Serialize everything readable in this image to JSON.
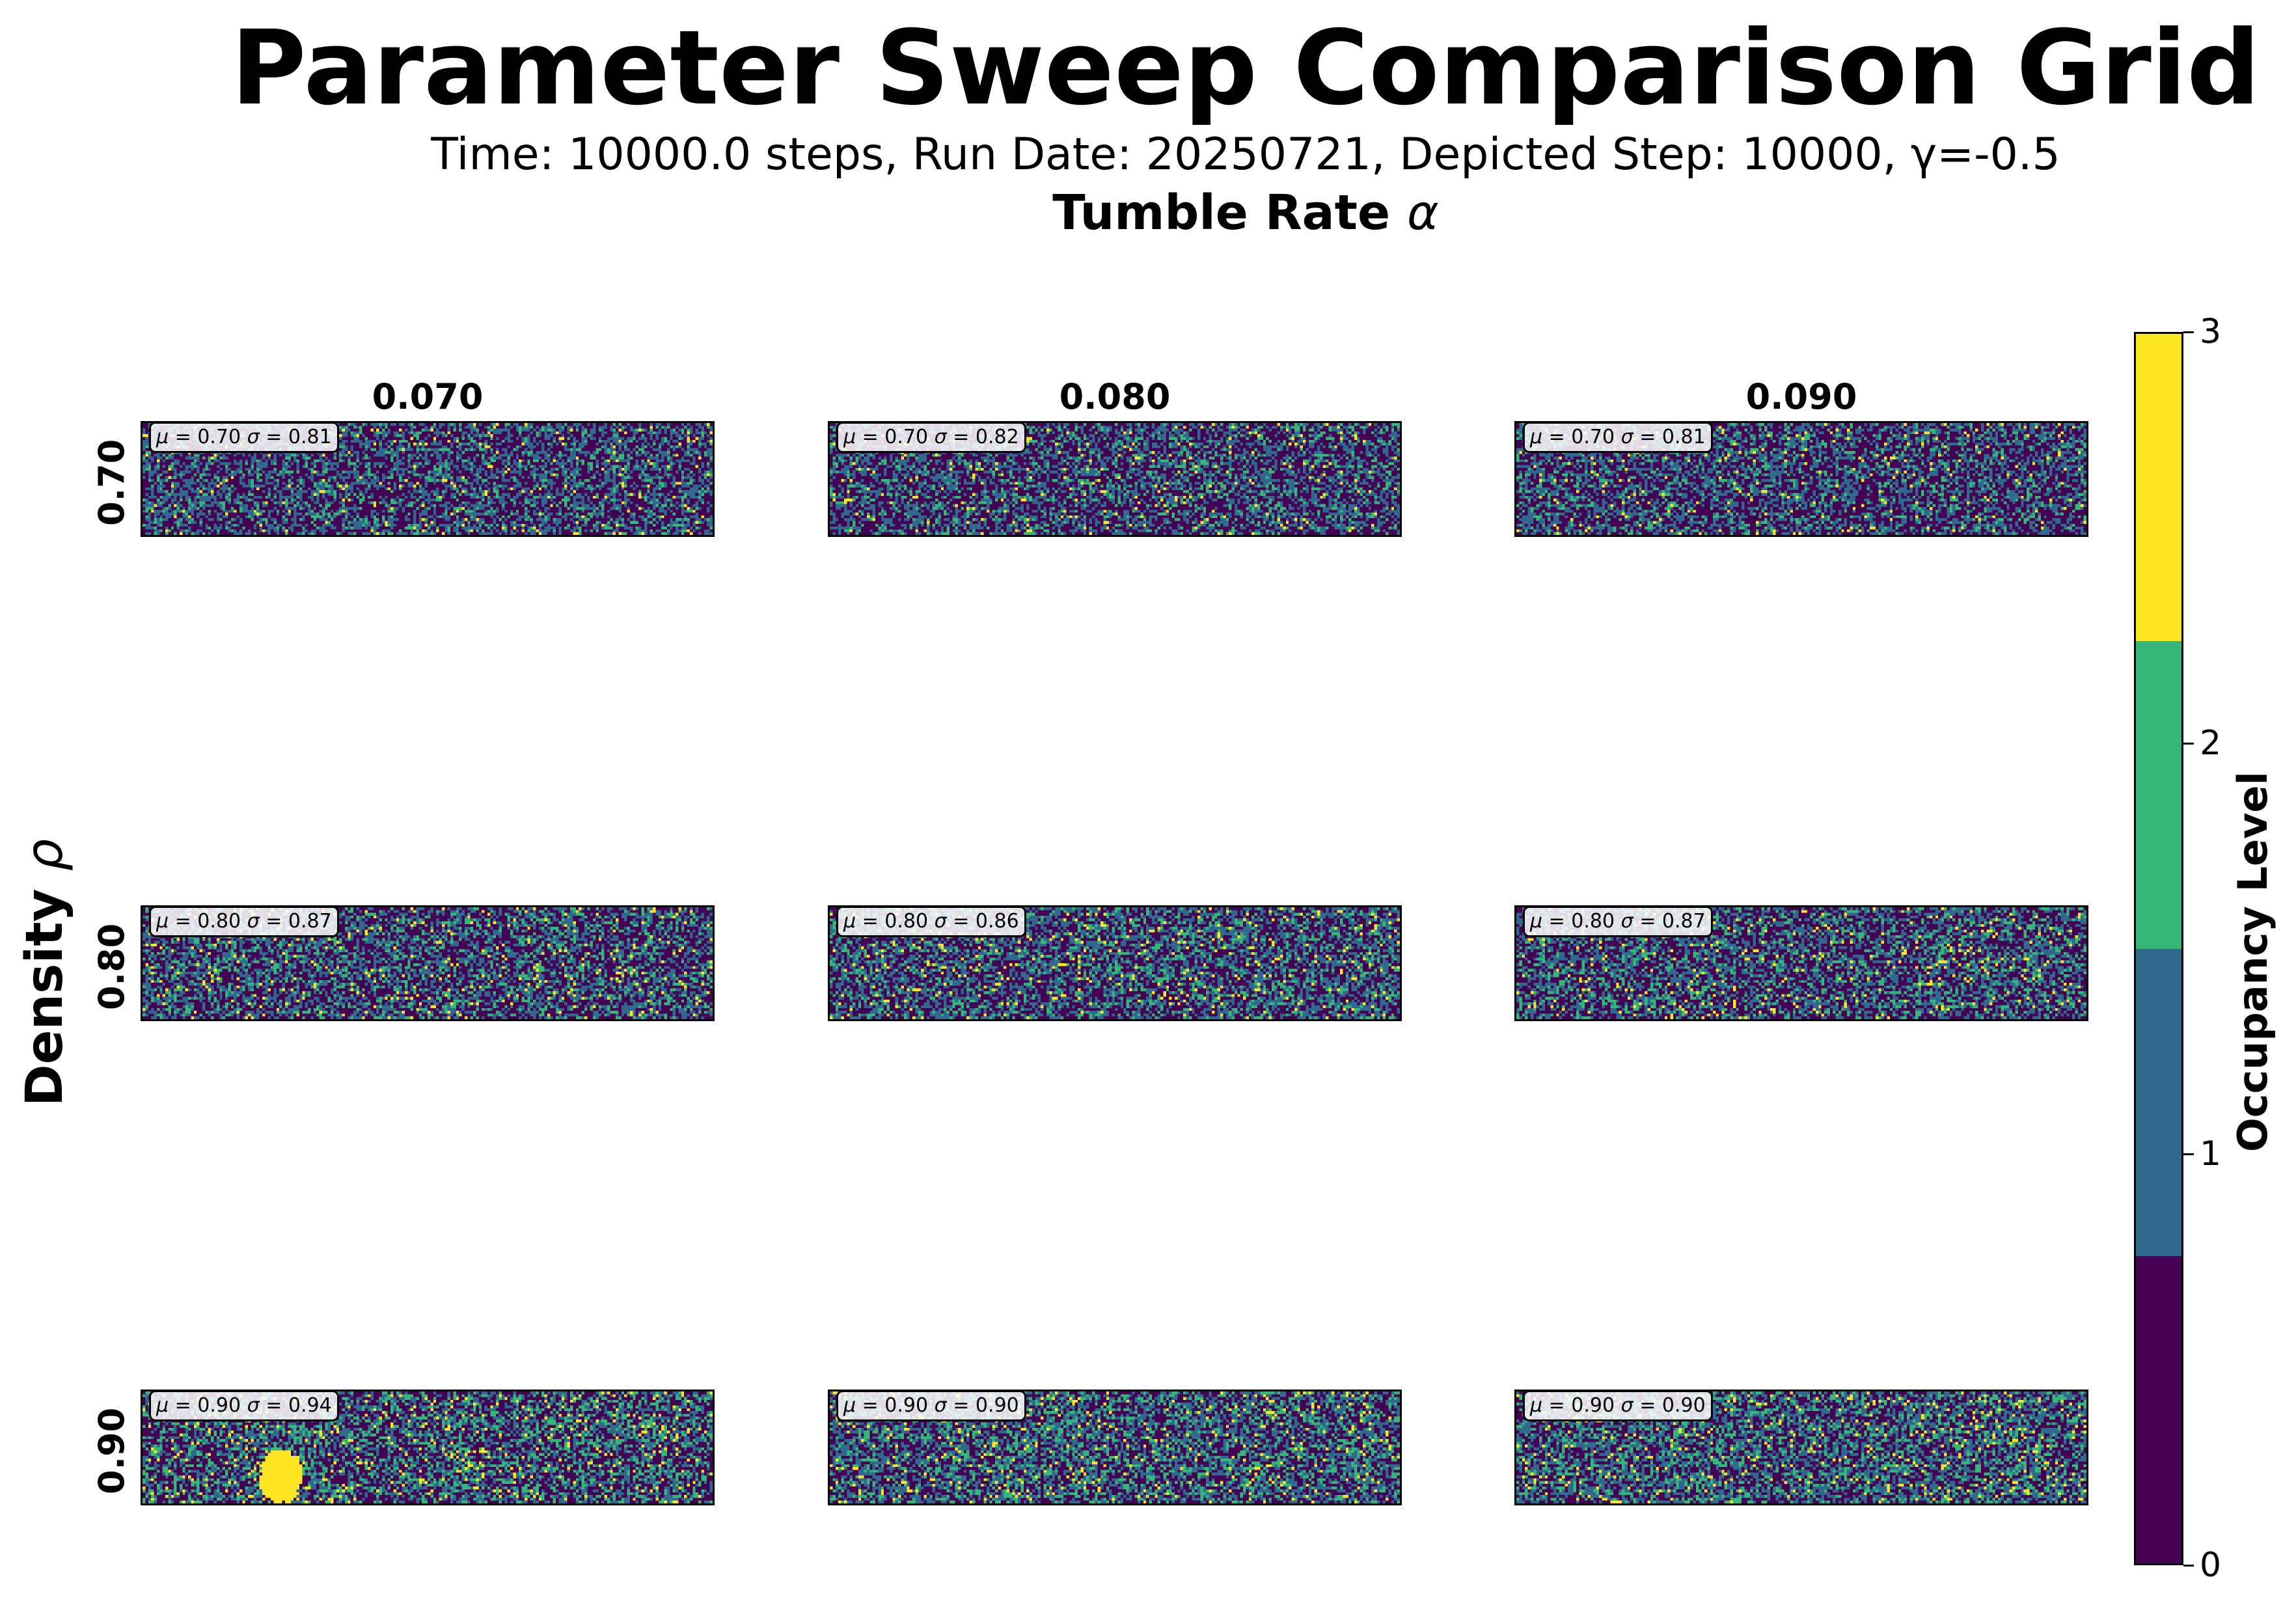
{
  "chart_data": {
    "type": "heatmap",
    "title": "Parameter Sweep Comparison Grid",
    "subtitle": "Time: 10000.0 steps, Run Date: 20250721, Depicted Step: 10000, γ=-0.5",
    "column_axis": {
      "label": "Tumble Rate",
      "symbol": "α",
      "values": [
        "0.070",
        "0.080",
        "0.090"
      ]
    },
    "row_axis": {
      "label": "Density",
      "symbol": "ρ",
      "values": [
        "0.70",
        "0.80",
        "0.90"
      ]
    },
    "colorbar": {
      "label": "Occupancy Level",
      "range": [
        0,
        3
      ],
      "ticks": [
        "0",
        "1",
        "2",
        "3"
      ],
      "levels": [
        {
          "value": 0,
          "color": "#440154"
        },
        {
          "value": 1,
          "color": "#31688e"
        },
        {
          "value": 2,
          "color": "#35b779"
        },
        {
          "value": 3,
          "color": "#fde725"
        }
      ]
    },
    "grid_size": {
      "cols": 200,
      "rows": 40
    },
    "panels": [
      {
        "row": "0.70",
        "col": "0.070",
        "mu": "0.70",
        "sigma": "0.81",
        "mu_value": 0.7,
        "sigma_value": 0.81
      },
      {
        "row": "0.70",
        "col": "0.080",
        "mu": "0.70",
        "sigma": "0.82",
        "mu_value": 0.7,
        "sigma_value": 0.82
      },
      {
        "row": "0.70",
        "col": "0.090",
        "mu": "0.70",
        "sigma": "0.81",
        "mu_value": 0.7,
        "sigma_value": 0.81
      },
      {
        "row": "0.80",
        "col": "0.070",
        "mu": "0.80",
        "sigma": "0.87",
        "mu_value": 0.8,
        "sigma_value": 0.87
      },
      {
        "row": "0.80",
        "col": "0.080",
        "mu": "0.80",
        "sigma": "0.86",
        "mu_value": 0.8,
        "sigma_value": 0.86
      },
      {
        "row": "0.80",
        "col": "0.090",
        "mu": "0.80",
        "sigma": "0.87",
        "mu_value": 0.8,
        "sigma_value": 0.87
      },
      {
        "row": "0.90",
        "col": "0.070",
        "mu": "0.90",
        "sigma": "0.94",
        "mu_value": 0.9,
        "sigma_value": 0.94
      },
      {
        "row": "0.90",
        "col": "0.080",
        "mu": "0.90",
        "sigma": "0.90",
        "mu_value": 0.9,
        "sigma_value": 0.9
      },
      {
        "row": "0.90",
        "col": "0.090",
        "mu": "0.90",
        "sigma": "0.90",
        "mu_value": 0.9,
        "sigma_value": 0.9
      }
    ]
  }
}
